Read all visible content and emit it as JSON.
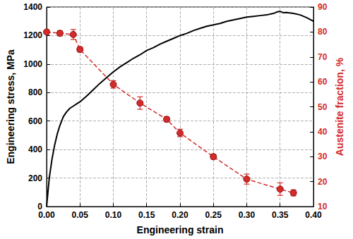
{
  "chart_data": {
    "type": "line",
    "x_label": "Engineering strain",
    "y_label": "Engineering stress, MPa",
    "y2_label": "Austenite fraction, %",
    "xlim": [
      0,
      0.4
    ],
    "xticks": [
      {
        "value": 0,
        "label": "0.00"
      },
      {
        "value": 0.05,
        "label": "0.05"
      },
      {
        "value": 0.1,
        "label": "0.10"
      },
      {
        "value": 0.15,
        "label": "0.15"
      },
      {
        "value": 0.2,
        "label": "0.20"
      },
      {
        "value": 0.25,
        "label": "0.25"
      },
      {
        "value": 0.3,
        "label": "0.30"
      },
      {
        "value": 0.35,
        "label": "0.35"
      },
      {
        "value": 0.4,
        "label": "0.40"
      }
    ],
    "ylim": [
      0,
      1400
    ],
    "yticks": [
      0,
      200,
      400,
      600,
      800,
      1000,
      1200,
      1400
    ],
    "y2lim": [
      10,
      90
    ],
    "y2ticks": [
      10,
      20,
      30,
      40,
      50,
      60,
      70,
      80,
      90
    ],
    "grid": true,
    "series": [
      {
        "color": "#000000",
        "marker": "none",
        "line_style": "solid",
        "x": [
          0,
          0.002,
          0.004,
          0.008,
          0.012,
          0.016,
          0.02,
          0.025,
          0.03,
          0.035,
          0.04,
          0.045,
          0.05,
          0.06,
          0.07,
          0.08,
          0.09,
          0.1,
          0.11,
          0.12,
          0.13,
          0.14,
          0.15,
          0.16,
          0.17,
          0.18,
          0.19,
          0.2,
          0.21,
          0.22,
          0.23,
          0.24,
          0.25,
          0.26,
          0.27,
          0.28,
          0.29,
          0.3,
          0.31,
          0.32,
          0.33,
          0.34,
          0.345,
          0.35,
          0.355,
          0.36,
          0.37,
          0.38,
          0.39,
          0.4
        ],
        "values": [
          0,
          100,
          200,
          330,
          430,
          510,
          570,
          630,
          665,
          690,
          705,
          720,
          735,
          775,
          820,
          865,
          905,
          945,
          980,
          1010,
          1040,
          1065,
          1095,
          1115,
          1140,
          1160,
          1180,
          1200,
          1215,
          1235,
          1250,
          1265,
          1275,
          1285,
          1300,
          1310,
          1320,
          1330,
          1335,
          1340,
          1345,
          1355,
          1365,
          1370,
          1360,
          1362,
          1355,
          1345,
          1325,
          1300
        ]
      },
      {
        "color": "#d42a2a",
        "marker": "circle",
        "line_style": "dashed",
        "axis": "y2",
        "x": [
          0,
          0.02,
          0.04,
          0.05,
          0.1,
          0.14,
          0.18,
          0.2,
          0.25,
          0.3,
          0.35,
          0.37
        ],
        "values": [
          80,
          79.5,
          79,
          73,
          59,
          51.5,
          45,
          39.5,
          30,
          21,
          17,
          15.5
        ],
        "errors": [
          1,
          1,
          2,
          1,
          1.5,
          2.5,
          1,
          1.5,
          1,
          2,
          2.5,
          1.2
        ]
      }
    ]
  }
}
